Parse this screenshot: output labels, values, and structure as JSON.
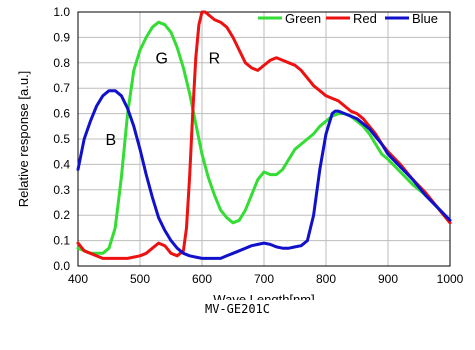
{
  "caption": "MV-GE201C",
  "chart_data": {
    "type": "line",
    "title": "",
    "xlabel": "Wave Length[nm]",
    "ylabel": "Relative response [a.u.]",
    "xlim": [
      400,
      1000
    ],
    "ylim": [
      0.0,
      1.0
    ],
    "x_ticks": [
      400,
      500,
      600,
      700,
      800,
      900,
      1000
    ],
    "x_tick_labels": [
      "400",
      "500",
      "600",
      "700",
      "800",
      "900",
      "1000"
    ],
    "y_ticks": [
      0.0,
      0.1,
      0.2,
      0.3,
      0.4,
      0.5,
      0.6,
      0.7,
      0.8,
      0.9,
      1.0
    ],
    "y_tick_labels": [
      "0.0",
      "0.1",
      "0.2",
      "0.3",
      "0.4",
      "0.5",
      "0.6",
      "0.7",
      "0.8",
      "0.9",
      "1.0"
    ],
    "grid": true,
    "legend_position": "top-right",
    "series": [
      {
        "name": "Green",
        "color": "#33dd33",
        "x": [
          400,
          420,
          440,
          450,
          460,
          470,
          480,
          490,
          500,
          510,
          520,
          530,
          540,
          550,
          560,
          570,
          580,
          590,
          600,
          610,
          620,
          630,
          640,
          650,
          660,
          670,
          680,
          690,
          700,
          710,
          720,
          730,
          740,
          750,
          760,
          770,
          780,
          790,
          800,
          810,
          820,
          830,
          840,
          850,
          860,
          870,
          880,
          890,
          900,
          920,
          940,
          960,
          980,
          1000
        ],
        "y": [
          0.07,
          0.05,
          0.05,
          0.07,
          0.15,
          0.35,
          0.6,
          0.77,
          0.85,
          0.9,
          0.94,
          0.96,
          0.95,
          0.92,
          0.86,
          0.78,
          0.68,
          0.56,
          0.44,
          0.35,
          0.28,
          0.22,
          0.19,
          0.17,
          0.18,
          0.22,
          0.28,
          0.34,
          0.37,
          0.36,
          0.36,
          0.38,
          0.42,
          0.46,
          0.48,
          0.5,
          0.52,
          0.55,
          0.57,
          0.59,
          0.6,
          0.6,
          0.59,
          0.57,
          0.55,
          0.52,
          0.48,
          0.44,
          0.42,
          0.37,
          0.32,
          0.28,
          0.23,
          0.17
        ]
      },
      {
        "name": "Red",
        "color": "#ee1111",
        "x": [
          400,
          410,
          420,
          440,
          460,
          480,
          500,
          510,
          520,
          530,
          540,
          550,
          560,
          570,
          575,
          580,
          585,
          590,
          595,
          600,
          605,
          610,
          620,
          630,
          640,
          650,
          660,
          670,
          680,
          690,
          700,
          710,
          720,
          730,
          740,
          750,
          760,
          770,
          780,
          790,
          800,
          810,
          820,
          830,
          840,
          850,
          860,
          870,
          880,
          890,
          900,
          920,
          940,
          960,
          980,
          1000
        ],
        "y": [
          0.09,
          0.06,
          0.05,
          0.03,
          0.03,
          0.03,
          0.04,
          0.05,
          0.07,
          0.09,
          0.08,
          0.05,
          0.04,
          0.06,
          0.15,
          0.35,
          0.6,
          0.82,
          0.95,
          1.0,
          1.0,
          0.99,
          0.97,
          0.96,
          0.94,
          0.9,
          0.85,
          0.8,
          0.78,
          0.77,
          0.79,
          0.81,
          0.82,
          0.81,
          0.8,
          0.79,
          0.77,
          0.74,
          0.71,
          0.69,
          0.67,
          0.66,
          0.65,
          0.63,
          0.61,
          0.6,
          0.58,
          0.55,
          0.52,
          0.48,
          0.45,
          0.4,
          0.34,
          0.29,
          0.23,
          0.17
        ]
      },
      {
        "name": "Blue",
        "color": "#1111cc",
        "x": [
          400,
          410,
          420,
          430,
          440,
          450,
          460,
          470,
          480,
          490,
          500,
          510,
          520,
          530,
          540,
          550,
          560,
          570,
          580,
          590,
          600,
          610,
          620,
          630,
          640,
          650,
          660,
          670,
          680,
          690,
          700,
          710,
          720,
          730,
          740,
          750,
          760,
          770,
          780,
          790,
          800,
          810,
          815,
          820,
          830,
          840,
          850,
          860,
          870,
          880,
          890,
          900,
          920,
          940,
          960,
          980,
          1000
        ],
        "y": [
          0.38,
          0.5,
          0.57,
          0.63,
          0.67,
          0.69,
          0.69,
          0.67,
          0.62,
          0.55,
          0.46,
          0.36,
          0.27,
          0.19,
          0.14,
          0.1,
          0.07,
          0.05,
          0.04,
          0.035,
          0.03,
          0.03,
          0.03,
          0.03,
          0.04,
          0.05,
          0.06,
          0.07,
          0.08,
          0.085,
          0.09,
          0.085,
          0.075,
          0.07,
          0.07,
          0.075,
          0.08,
          0.1,
          0.2,
          0.38,
          0.52,
          0.6,
          0.61,
          0.61,
          0.6,
          0.59,
          0.58,
          0.56,
          0.54,
          0.51,
          0.48,
          0.44,
          0.39,
          0.34,
          0.28,
          0.23,
          0.18
        ]
      }
    ],
    "annotations": [
      {
        "text": "B",
        "x": 453,
        "y": 0.5
      },
      {
        "text": "G",
        "x": 535,
        "y": 0.82
      },
      {
        "text": "R",
        "x": 620,
        "y": 0.82
      }
    ]
  }
}
